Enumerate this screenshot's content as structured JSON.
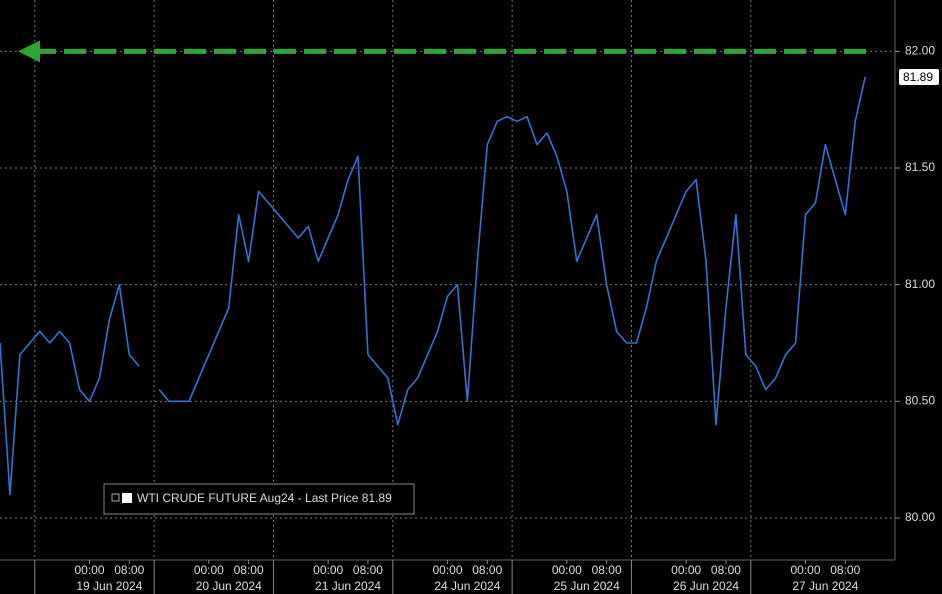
{
  "chart_data": {
    "type": "line",
    "series": [
      {
        "name": "WTI CRUDE FUTURE Aug24 - Last Price 81.89",
        "color": "#2f74d6",
        "x": [
          -18,
          -16,
          -14,
          -12,
          -10,
          -8,
          -6,
          -4,
          -2,
          0,
          2,
          4,
          6,
          8,
          10,
          12,
          14,
          16,
          18,
          20,
          22,
          24,
          26,
          28,
          30,
          32,
          34,
          36,
          38,
          40,
          42,
          44,
          46,
          48,
          50,
          52,
          54,
          56,
          58,
          60,
          62,
          64,
          66,
          68,
          70,
          72,
          74,
          76,
          78,
          80,
          82,
          84,
          86,
          88,
          90,
          92,
          94,
          96,
          98,
          100,
          102,
          104,
          106,
          108,
          110,
          112,
          114,
          116,
          118,
          120,
          122,
          124,
          126,
          128,
          130,
          132,
          134,
          136,
          138,
          140,
          142,
          144,
          146,
          148,
          150,
          152,
          154,
          156
        ],
        "values": [
          80.75,
          80.1,
          80.7,
          80.75,
          80.8,
          80.75,
          80.8,
          80.75,
          80.55,
          80.5,
          80.6,
          80.85,
          81.0,
          80.7,
          80.65,
          null,
          80.55,
          80.5,
          80.5,
          80.5,
          80.6,
          80.7,
          80.8,
          80.9,
          81.3,
          81.1,
          81.4,
          81.35,
          81.3,
          81.25,
          81.2,
          81.25,
          81.1,
          81.2,
          81.3,
          81.45,
          81.55,
          80.7,
          80.65,
          80.6,
          80.4,
          80.55,
          80.6,
          80.7,
          80.8,
          80.95,
          81.0,
          80.5,
          81.1,
          81.6,
          81.7,
          81.72,
          81.7,
          81.72,
          81.6,
          81.65,
          81.55,
          81.4,
          81.1,
          81.2,
          81.3,
          81.0,
          80.8,
          80.75,
          80.75,
          80.9,
          81.1,
          81.2,
          81.3,
          81.4,
          81.45,
          81.1,
          80.4,
          80.9,
          81.3,
          80.7,
          80.65,
          80.55,
          80.6,
          80.7,
          80.75,
          81.3,
          81.35,
          81.6,
          81.45,
          81.3,
          81.7,
          81.89
        ]
      }
    ],
    "reference_line": {
      "value": 82,
      "color": "#2ea52e"
    },
    "xlim": [
      -18,
      162
    ],
    "ylim": [
      79.82,
      82.22
    ],
    "yticks": [
      {
        "value": 80,
        "label": "80.00"
      },
      {
        "value": 80.5,
        "label": "80.50"
      },
      {
        "value": 81,
        "label": "81.00"
      },
      {
        "value": 81.5,
        "label": "81.50"
      },
      {
        "value": 82,
        "label": "82.00"
      }
    ],
    "xticks": [
      {
        "value": 0,
        "label": "00:00"
      },
      {
        "value": 8,
        "label": "08:00"
      },
      {
        "value": 24,
        "label": "00:00"
      },
      {
        "value": 32,
        "label": "08:00"
      },
      {
        "value": 48,
        "label": "00:00"
      },
      {
        "value": 56,
        "label": "08:00"
      },
      {
        "value": 72,
        "label": "00:00"
      },
      {
        "value": 80,
        "label": "08:00"
      },
      {
        "value": 96,
        "label": "00:00"
      },
      {
        "value": 104,
        "label": "08:00"
      },
      {
        "value": 120,
        "label": "00:00"
      },
      {
        "value": 128,
        "label": "08:00"
      },
      {
        "value": 144,
        "label": "00:00"
      },
      {
        "value": 152,
        "label": "08:00"
      }
    ],
    "date_labels": [
      {
        "value": 4,
        "label": "19 Jun 2024"
      },
      {
        "value": 28,
        "label": "20 Jun 2024"
      },
      {
        "value": 52,
        "label": "21 Jun 2024"
      },
      {
        "value": 76,
        "label": "24 Jun 2024"
      },
      {
        "value": 100,
        "label": "25 Jun 2024"
      },
      {
        "value": 124,
        "label": "26 Jun 2024"
      },
      {
        "value": 148,
        "label": "27 Jun 2024"
      }
    ],
    "grid": true
  }
}
